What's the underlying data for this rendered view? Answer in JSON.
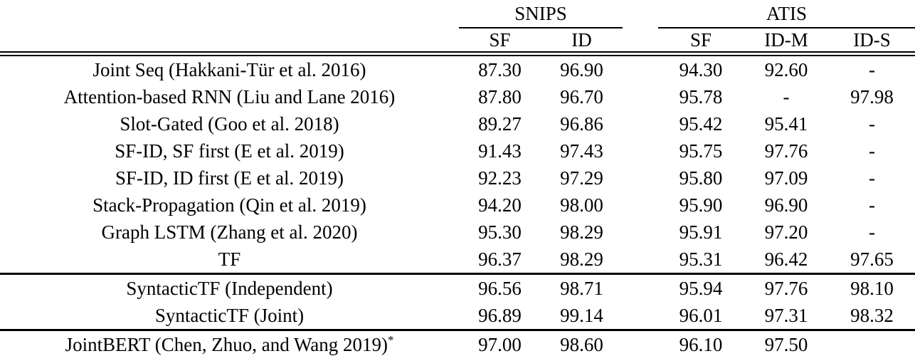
{
  "page": {
    "background_color": "#ffffff",
    "text_color": "#000000"
  },
  "table": {
    "groups": [
      {
        "label": "SNIPS",
        "span": 2
      },
      {
        "label": "ATIS",
        "span": 3
      }
    ],
    "sub_headers": [
      "SF",
      "ID",
      "SF",
      "ID-M",
      "ID-S"
    ],
    "rows": [
      {
        "method": "Joint Seq (Hakkani-Tür et al. 2016)",
        "method_sup": "",
        "bold_method": false,
        "values": [
          "87.30",
          "96.90",
          "94.30",
          "92.60",
          "-"
        ],
        "bold_values": [
          false,
          false,
          false,
          false,
          false
        ],
        "rule_below": false
      },
      {
        "method": "Attention-based RNN (Liu and Lane 2016)",
        "method_sup": "",
        "bold_method": false,
        "values": [
          "87.80",
          "96.70",
          "95.78",
          "-",
          "97.98"
        ],
        "bold_values": [
          false,
          false,
          false,
          false,
          false
        ],
        "rule_below": false
      },
      {
        "method": "Slot-Gated (Goo et al. 2018)",
        "method_sup": "",
        "bold_method": false,
        "values": [
          "89.27",
          "96.86",
          "95.42",
          "95.41",
          "-"
        ],
        "bold_values": [
          false,
          false,
          false,
          false,
          false
        ],
        "rule_below": false
      },
      {
        "method": "SF-ID, SF first (E et al. 2019)",
        "method_sup": "",
        "bold_method": false,
        "values": [
          "91.43",
          "97.43",
          "95.75",
          "97.76",
          "-"
        ],
        "bold_values": [
          false,
          false,
          false,
          false,
          false
        ],
        "rule_below": false
      },
      {
        "method": "SF-ID, ID first (E et al. 2019)",
        "method_sup": "",
        "bold_method": false,
        "values": [
          "92.23",
          "97.29",
          "95.80",
          "97.09",
          "-"
        ],
        "bold_values": [
          false,
          false,
          false,
          false,
          false
        ],
        "rule_below": false
      },
      {
        "method": "Stack-Propagation (Qin et al. 2019)",
        "method_sup": "",
        "bold_method": false,
        "values": [
          "94.20",
          "98.00",
          "95.90",
          "96.90",
          "-"
        ],
        "bold_values": [
          false,
          false,
          false,
          false,
          false
        ],
        "rule_below": false
      },
      {
        "method": "Graph LSTM (Zhang et al. 2020)",
        "method_sup": "",
        "bold_method": false,
        "values": [
          "95.30",
          "98.29",
          "95.91",
          "97.20",
          "-"
        ],
        "bold_values": [
          false,
          false,
          false,
          false,
          false
        ],
        "rule_below": false
      },
      {
        "method": "TF",
        "method_sup": "",
        "bold_method": false,
        "values": [
          "96.37",
          "98.29",
          "95.31",
          "96.42",
          "97.65"
        ],
        "bold_values": [
          false,
          false,
          false,
          false,
          false
        ],
        "rule_below": true
      },
      {
        "method": "SyntacticTF (Independent)",
        "method_sup": "",
        "bold_method": true,
        "values": [
          "96.56",
          "98.71",
          "95.94",
          "97.76",
          "98.10"
        ],
        "bold_values": [
          false,
          false,
          false,
          true,
          false
        ],
        "rule_below": false
      },
      {
        "method": "SyntacticTF (Joint)",
        "method_sup": "",
        "bold_method": true,
        "values": [
          "96.89",
          "99.14",
          "96.01",
          "97.31",
          "98.32"
        ],
        "bold_values": [
          true,
          true,
          true,
          false,
          true
        ],
        "rule_below": true
      },
      {
        "method": "JointBERT (Chen, Zhuo, and Wang 2019)",
        "method_sup": "*",
        "bold_method": false,
        "values": [
          "97.00",
          "98.60",
          "96.10",
          "97.50",
          ""
        ],
        "bold_values": [
          false,
          false,
          false,
          false,
          false
        ],
        "rule_below": false
      }
    ]
  }
}
